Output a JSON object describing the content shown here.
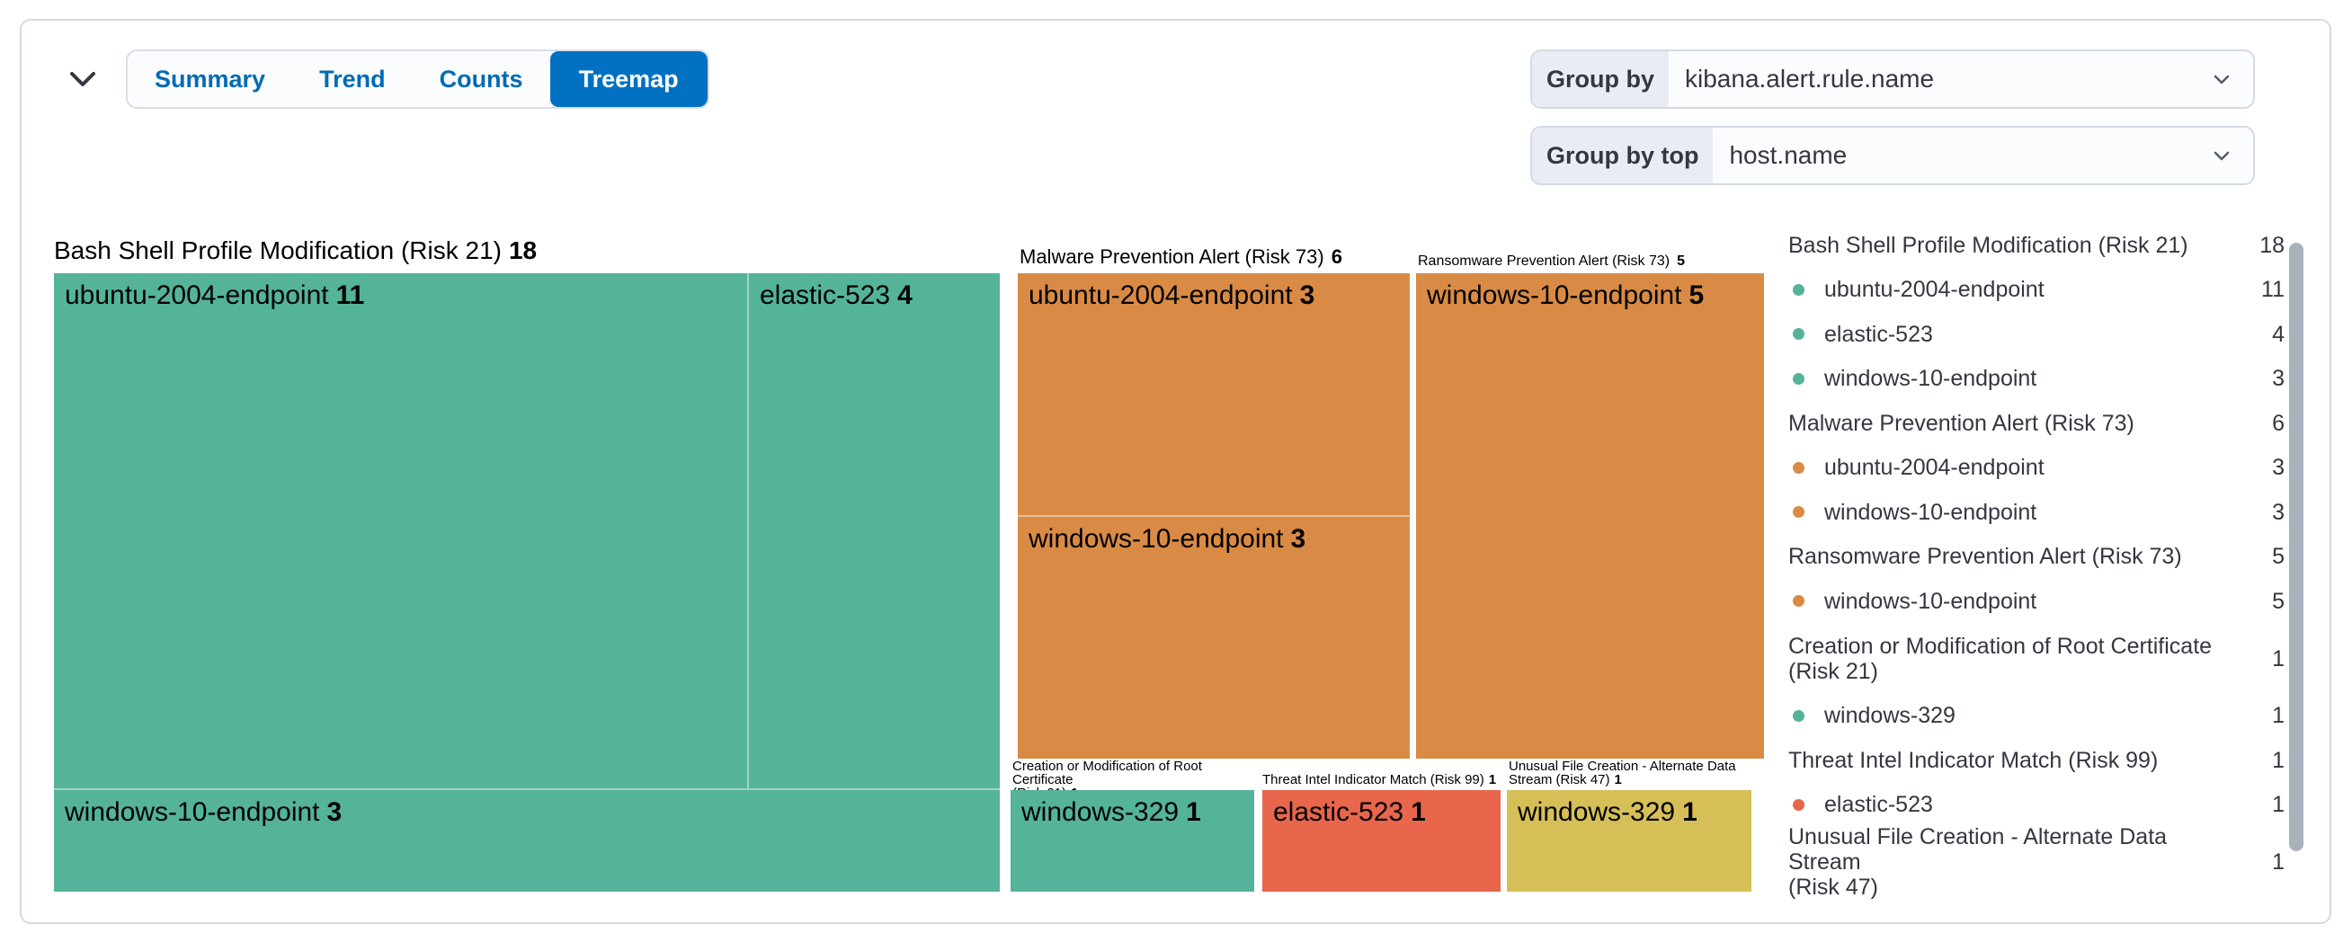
{
  "panel": {
    "tabs": [
      "Summary",
      "Trend",
      "Counts",
      "Treemap"
    ],
    "active_tab": "Treemap",
    "controls": {
      "group_by": {
        "label": "Group by",
        "value": "kibana.alert.rule.name"
      },
      "group_by_top": {
        "label": "Group by top",
        "value": "host.name"
      }
    }
  },
  "colors": {
    "green": "#54B399",
    "orange": "#D98B45",
    "red": "#E7664C",
    "yellow": "#D6BF57",
    "tab_active_bg": "#0071C2",
    "tab_link": "#006BB4",
    "text": "#343741",
    "border": "#D3DAE6",
    "scrollbar_thumb": "#A9B1BC"
  },
  "chart_data": {
    "type": "treemap",
    "group_by_field": "kibana.alert.rule.name",
    "group_by_top_field": "host.name",
    "groups": [
      {
        "rule": "Bash Shell Profile Modification (Risk 21)",
        "display": "Bash Shell Profile Modification (Risk 21)",
        "count": 18,
        "color": "#54B399",
        "children": [
          {
            "host": "ubuntu-2004-endpoint",
            "count": 11
          },
          {
            "host": "elastic-523",
            "count": 4
          },
          {
            "host": "windows-10-endpoint",
            "count": 3
          }
        ]
      },
      {
        "rule": "Malware Prevention Alert (Risk 73)",
        "display": "Malware Prevention Alert (Risk 73)",
        "count": 6,
        "color": "#D98B45",
        "children": [
          {
            "host": "ubuntu-2004-endpoint",
            "count": 3
          },
          {
            "host": "windows-10-endpoint",
            "count": 3
          }
        ]
      },
      {
        "rule": "Ransomware Prevention Alert (Risk 73)",
        "display": "Ransomware Prevention Alert (Risk 73)",
        "count": 5,
        "color": "#D98B45",
        "children": [
          {
            "host": "windows-10-endpoint",
            "count": 5
          }
        ]
      },
      {
        "rule": "Creation or Modification of Root Certificate (Risk 21)",
        "display": "Creation or Modification of Root Certificate\n(Risk 21)",
        "count": 1,
        "color": "#54B399",
        "children": [
          {
            "host": "windows-329",
            "count": 1
          }
        ]
      },
      {
        "rule": "Threat Intel Indicator Match (Risk 99)",
        "display": "Threat Intel Indicator Match (Risk 99)",
        "count": 1,
        "color": "#E7664C",
        "children": [
          {
            "host": "elastic-523",
            "count": 1
          }
        ]
      },
      {
        "rule": "Unusual File Creation - Alternate Data Stream (Risk 47)",
        "display": "Unusual File Creation - Alternate Data\nStream (Risk 47)",
        "count": 1,
        "color": "#D6BF57",
        "children": [
          {
            "host": "windows-329",
            "count": 1
          }
        ]
      }
    ]
  },
  "legend": {
    "rows": [
      {
        "kind": "header",
        "label": "Bash Shell Profile Modification (Risk 21)",
        "value": "18"
      },
      {
        "kind": "item",
        "dot": "#54B399",
        "label": "ubuntu-2004-endpoint",
        "value": "11"
      },
      {
        "kind": "item",
        "dot": "#54B399",
        "label": "elastic-523",
        "value": "4"
      },
      {
        "kind": "item",
        "dot": "#54B399",
        "label": "windows-10-endpoint",
        "value": "3"
      },
      {
        "kind": "header",
        "label": "Malware Prevention Alert (Risk 73)",
        "value": "6"
      },
      {
        "kind": "item",
        "dot": "#D98B45",
        "label": "ubuntu-2004-endpoint",
        "value": "3"
      },
      {
        "kind": "item",
        "dot": "#D98B45",
        "label": "windows-10-endpoint",
        "value": "3"
      },
      {
        "kind": "header",
        "label": "Ransomware Prevention Alert (Risk 73)",
        "value": "5"
      },
      {
        "kind": "item",
        "dot": "#D98B45",
        "label": "windows-10-endpoint",
        "value": "5"
      },
      {
        "kind": "header",
        "label": "Creation or Modification of Root Certificate\n(Risk 21)",
        "value": "1",
        "two_line": true
      },
      {
        "kind": "item",
        "dot": "#54B399",
        "label": "windows-329",
        "value": "1"
      },
      {
        "kind": "header",
        "label": "Threat Intel Indicator Match (Risk 99)",
        "value": "1"
      },
      {
        "kind": "item",
        "dot": "#E7664C",
        "label": "elastic-523",
        "value": "1"
      },
      {
        "kind": "header",
        "label": "Unusual File Creation - Alternate Data Stream\n(Risk 47)",
        "value": "1",
        "two_line": true
      }
    ]
  }
}
